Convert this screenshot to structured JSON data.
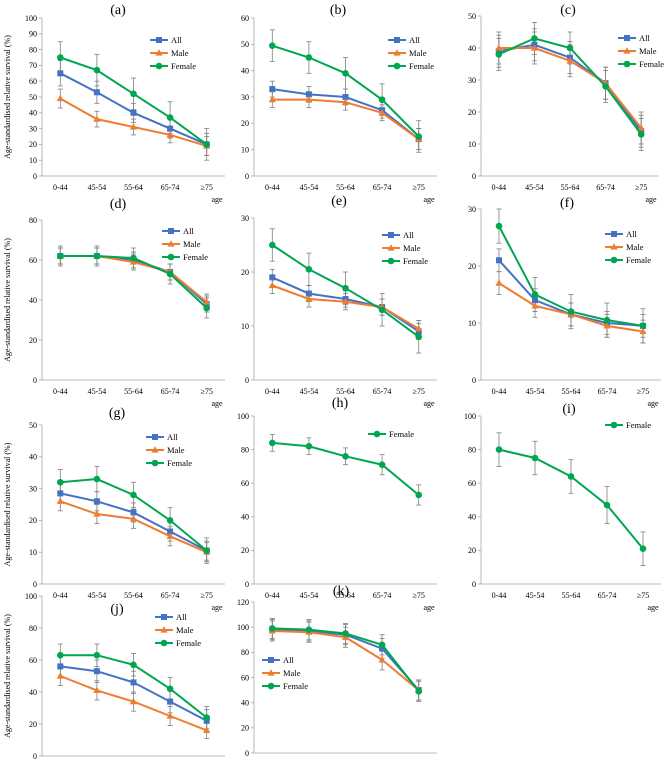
{
  "figure": {
    "ylabel": "Age-standardised relative survival (%)",
    "xlabel": "age",
    "colors": {
      "All": "#4472C4",
      "Male": "#ED7D31",
      "Female": "#00A650",
      "error": "#7f7f7f",
      "axis": "#a6a6a6"
    }
  },
  "chart_data": [
    {
      "id": "a",
      "title": "(a)",
      "type": "line",
      "categories": [
        "0-44",
        "45-54",
        "55-64",
        "65-74",
        "≥75"
      ],
      "ylim": [
        0,
        100
      ],
      "yticks": [
        0,
        10,
        20,
        30,
        40,
        50,
        60,
        70,
        80,
        90,
        100
      ],
      "xlabel": "",
      "ylabel": "Age-standardised relative survival (%)",
      "series": [
        {
          "name": "All",
          "values": [
            65,
            53,
            40,
            30,
            20
          ],
          "err": [
            8,
            7,
            6,
            6,
            7
          ]
        },
        {
          "name": "Male",
          "values": [
            49,
            36,
            31,
            26,
            19
          ],
          "err": [
            6,
            5,
            5,
            5,
            6
          ]
        },
        {
          "name": "Female",
          "values": [
            75,
            67,
            52,
            37,
            20
          ],
          "err": [
            10,
            10,
            10,
            10,
            10
          ]
        }
      ]
    },
    {
      "id": "b",
      "title": "(b)",
      "type": "line",
      "categories": [
        "0-44",
        "45-54",
        "55-64",
        "65-74",
        "≥75"
      ],
      "ylim": [
        0,
        60
      ],
      "yticks": [
        0,
        10,
        20,
        30,
        40,
        50,
        60
      ],
      "xlabel": "",
      "ylabel": "",
      "series": [
        {
          "name": "All",
          "values": [
            33,
            31,
            30,
            25,
            14
          ],
          "err": [
            3,
            3,
            3,
            3,
            4
          ]
        },
        {
          "name": "Male",
          "values": [
            29,
            29,
            28,
            24,
            14
          ],
          "err": [
            3,
            3,
            3,
            3,
            4
          ]
        },
        {
          "name": "Female",
          "values": [
            49.5,
            45,
            39,
            29,
            15
          ],
          "err": [
            6,
            6,
            6,
            6,
            6
          ]
        }
      ]
    },
    {
      "id": "c",
      "title": "(c)",
      "type": "line",
      "categories": [
        "0-44",
        "45-54",
        "55-64",
        "65-74",
        "≥75"
      ],
      "ylim": [
        0,
        50
      ],
      "yticks": [
        0,
        10,
        20,
        30,
        40,
        50
      ],
      "xlabel": "",
      "ylabel": "",
      "series": [
        {
          "name": "All",
          "values": [
            39,
            41,
            37,
            29,
            14
          ],
          "err": [
            5,
            5,
            5,
            5,
            5
          ]
        },
        {
          "name": "Male",
          "values": [
            40,
            40,
            36,
            29,
            15
          ],
          "err": [
            5,
            5,
            5,
            5,
            5
          ]
        },
        {
          "name": "Female",
          "values": [
            38,
            43,
            40,
            28,
            13
          ],
          "err": [
            5,
            5,
            5,
            5,
            5
          ]
        }
      ]
    },
    {
      "id": "d",
      "title": "(d)",
      "type": "line",
      "categories": [
        "0-44",
        "45-54",
        "55-64",
        "65-74",
        "≥75"
      ],
      "ylim": [
        0,
        80
      ],
      "yticks": [
        0,
        20,
        40,
        60,
        80
      ],
      "xlabel": "",
      "ylabel": "Age-standardised relative survival (%)",
      "series": [
        {
          "name": "All",
          "values": [
            62,
            62,
            60,
            54,
            38
          ],
          "err": [
            4,
            4,
            4,
            4,
            4
          ]
        },
        {
          "name": "Male",
          "values": [
            62,
            62,
            59,
            54,
            39
          ],
          "err": [
            4,
            4,
            4,
            4,
            4
          ]
        },
        {
          "name": "Female",
          "values": [
            62,
            62,
            61,
            53,
            36
          ],
          "err": [
            5,
            5,
            5,
            5,
            5
          ]
        }
      ]
    },
    {
      "id": "e",
      "title": "(e)",
      "type": "line",
      "categories": [
        "0-44",
        "45-54",
        "55-64",
        "65-74",
        "≥75"
      ],
      "ylim": [
        0,
        30
      ],
      "yticks": [
        0,
        10,
        20,
        30
      ],
      "xlabel": "",
      "ylabel": "",
      "series": [
        {
          "name": "All",
          "values": [
            19,
            16,
            15,
            13.5,
            9
          ],
          "err": [
            1.5,
            1.5,
            1.5,
            1.5,
            1.5
          ]
        },
        {
          "name": "Male",
          "values": [
            17.5,
            15,
            14.5,
            13.5,
            9.5
          ],
          "err": [
            1.5,
            1.5,
            1.5,
            1.5,
            1.5
          ]
        },
        {
          "name": "Female",
          "values": [
            25,
            20.5,
            17,
            13,
            8
          ],
          "err": [
            3,
            3,
            3,
            3,
            3
          ]
        }
      ]
    },
    {
      "id": "f",
      "title": "(f)",
      "type": "line",
      "categories": [
        "0-44",
        "45-54",
        "55-64",
        "65-74",
        "≥75"
      ],
      "ylim": [
        0,
        30
      ],
      "yticks": [
        0,
        10,
        20,
        30
      ],
      "xlabel": "",
      "ylabel": "",
      "series": [
        {
          "name": "All",
          "values": [
            21,
            14,
            11.5,
            10,
            9.5
          ],
          "err": [
            2,
            2,
            2,
            2,
            2
          ]
        },
        {
          "name": "Male",
          "values": [
            17,
            13,
            11.5,
            9.5,
            8.5
          ],
          "err": [
            2,
            2,
            2,
            2,
            2
          ]
        },
        {
          "name": "Female",
          "values": [
            27,
            15,
            12,
            10.5,
            9.5
          ],
          "err": [
            3,
            3,
            3,
            3,
            3
          ]
        }
      ]
    },
    {
      "id": "g",
      "title": "(g)",
      "type": "line",
      "categories": [
        "0-44",
        "45-54",
        "55-64",
        "65-74",
        "≥75"
      ],
      "ylim": [
        0,
        50
      ],
      "yticks": [
        0,
        10,
        20,
        30,
        40,
        50
      ],
      "xlabel": "",
      "ylabel": "Age-standardised relative survival (%)",
      "series": [
        {
          "name": "All",
          "values": [
            28.5,
            26,
            22.5,
            16.5,
            10.5
          ],
          "err": [
            3,
            3,
            3,
            3,
            3
          ]
        },
        {
          "name": "Male",
          "values": [
            26,
            22,
            20.5,
            15,
            10
          ],
          "err": [
            3,
            3,
            3,
            3,
            3
          ]
        },
        {
          "name": "Female",
          "values": [
            32,
            33,
            28,
            20,
            10.5
          ],
          "err": [
            4,
            4,
            4,
            4,
            4
          ]
        }
      ]
    },
    {
      "id": "h",
      "title": "(h)",
      "type": "line",
      "categories": [
        "0-44",
        "45-54",
        "55-64",
        "65-74",
        "≥75"
      ],
      "ylim": [
        0,
        100
      ],
      "yticks": [
        0,
        20,
        40,
        60,
        80,
        100
      ],
      "xlabel": "",
      "ylabel": "",
      "series": [
        {
          "name": "Female",
          "values": [
            84,
            82,
            76,
            71,
            53
          ],
          "err": [
            5,
            5,
            5,
            6,
            6
          ]
        }
      ]
    },
    {
      "id": "i",
      "title": "(i)",
      "type": "line",
      "categories": [
        "0-44",
        "45-54",
        "55-64",
        "65-74",
        "≥75"
      ],
      "ylim": [
        0,
        100
      ],
      "yticks": [
        0,
        20,
        40,
        60,
        80,
        100
      ],
      "xlabel": "",
      "ylabel": "",
      "series": [
        {
          "name": "Female",
          "values": [
            80,
            75,
            64,
            47,
            21
          ],
          "err": [
            10,
            10,
            10,
            11,
            10
          ]
        }
      ]
    },
    {
      "id": "j",
      "title": "(j)",
      "type": "line",
      "categories": [
        "0-44",
        "45-54",
        "55-64",
        "65-74",
        "≥75"
      ],
      "ylim": [
        0,
        100
      ],
      "yticks": [
        0,
        20,
        40,
        60,
        80,
        100
      ],
      "xlabel": "",
      "ylabel": "Age-standardised relative survival (%)",
      "series": [
        {
          "name": "All",
          "values": [
            56,
            53,
            46,
            34,
            22
          ],
          "err": [
            7,
            7,
            7,
            7,
            7
          ]
        },
        {
          "name": "Male",
          "values": [
            50,
            41,
            34,
            25,
            16
          ],
          "err": [
            6,
            6,
            6,
            6,
            5
          ]
        },
        {
          "name": "Female",
          "values": [
            63,
            63,
            57,
            42,
            24
          ],
          "err": [
            7,
            7,
            7,
            7,
            7
          ]
        }
      ]
    },
    {
      "id": "k",
      "title": "(k)",
      "type": "line",
      "categories": [
        "0-44",
        "45-54",
        "55-64",
        "65-74",
        "≥75"
      ],
      "ylim": [
        0,
        120
      ],
      "yticks": [
        0,
        20,
        40,
        60,
        80,
        100,
        120
      ],
      "xlabel": "",
      "ylabel": "",
      "series": [
        {
          "name": "All",
          "values": [
            98,
            97,
            94,
            83,
            50
          ],
          "err": [
            8,
            8,
            8,
            8,
            8
          ]
        },
        {
          "name": "Male",
          "values": [
            97,
            96,
            92,
            74,
            50
          ],
          "err": [
            8,
            8,
            8,
            8,
            8
          ]
        },
        {
          "name": "Female",
          "values": [
            99,
            98,
            95,
            86,
            49
          ],
          "err": [
            8,
            8,
            8,
            8,
            8
          ]
        }
      ]
    }
  ]
}
